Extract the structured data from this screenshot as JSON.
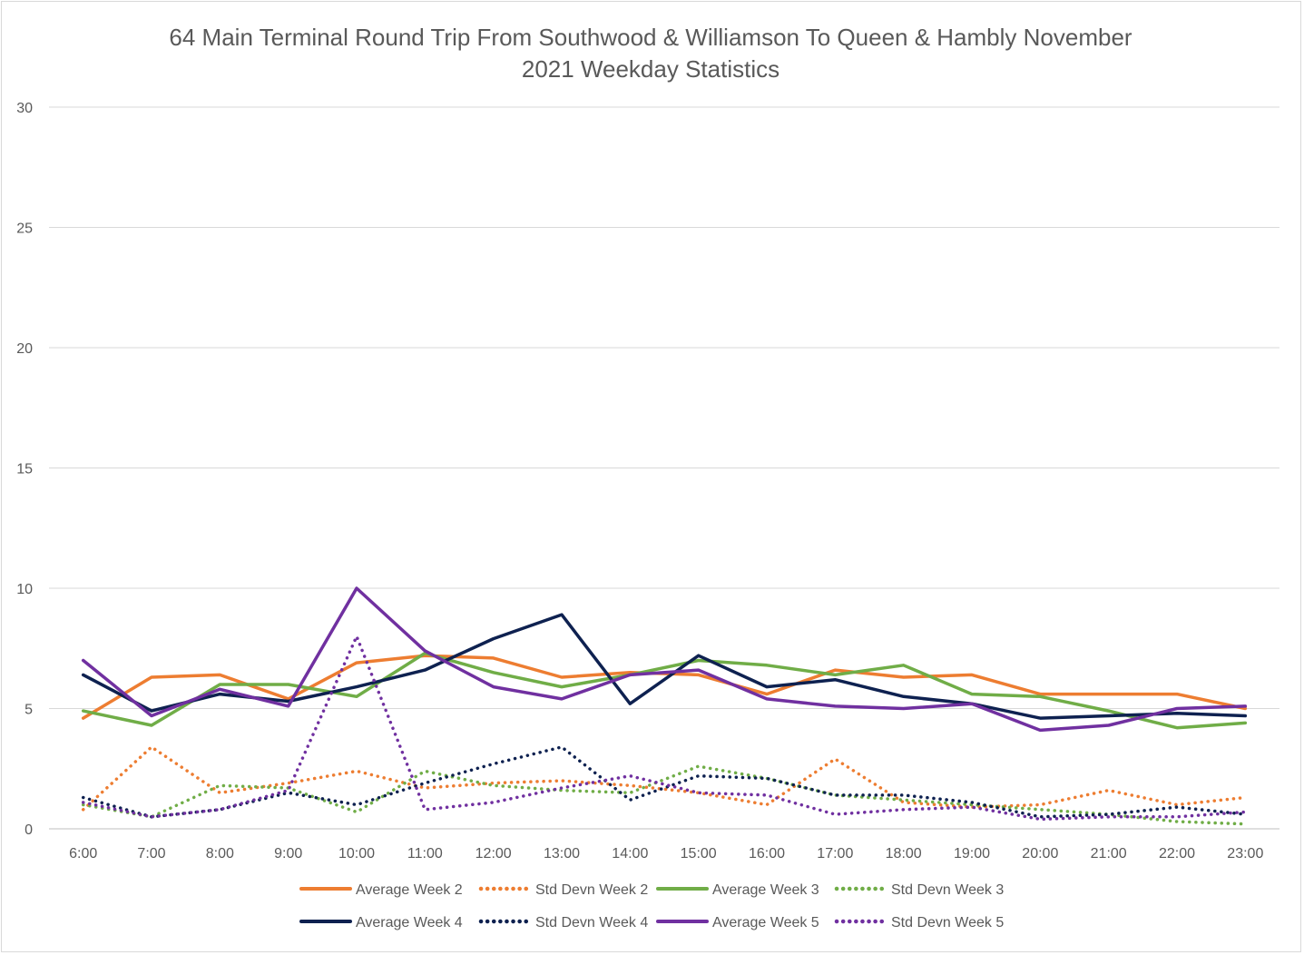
{
  "chart_data": {
    "type": "line",
    "title": "64 Main Terminal Round Trip From Southwood & Williamson To Queen & Hambly November 2021 Weekday Statistics",
    "title_lines": [
      "64 Main Terminal Round Trip From Southwood & Williamson To Queen & Hambly November",
      "2021 Weekday Statistics"
    ],
    "xlabel": "",
    "ylabel": "",
    "ylim": [
      0,
      30
    ],
    "yticks": [
      0,
      5,
      10,
      15,
      20,
      25,
      30
    ],
    "ytick_labels": [
      "0",
      "5",
      "10",
      "15",
      "20",
      "25",
      "30"
    ],
    "grid": true,
    "legend_position": "bottom",
    "categories": [
      "6:00",
      "7:00",
      "8:00",
      "9:00",
      "10:00",
      "11:00",
      "12:00",
      "13:00",
      "14:00",
      "15:00",
      "16:00",
      "17:00",
      "18:00",
      "19:00",
      "20:00",
      "21:00",
      "22:00",
      "23:00"
    ],
    "series": [
      {
        "name": "Average Week 2",
        "color": "#ED7D31",
        "dash": "solid",
        "values": [
          4.6,
          6.3,
          6.4,
          5.4,
          6.9,
          7.2,
          7.1,
          6.3,
          6.5,
          6.4,
          5.6,
          6.6,
          6.3,
          6.4,
          5.6,
          5.6,
          5.6,
          5.0
        ]
      },
      {
        "name": "Std Devn Week 2",
        "color": "#ED7D31",
        "dash": "dotted",
        "values": [
          0.8,
          3.4,
          1.5,
          1.9,
          2.4,
          1.7,
          1.9,
          2.0,
          1.8,
          1.5,
          1.0,
          2.9,
          1.1,
          0.9,
          1.0,
          1.6,
          1.0,
          1.3
        ]
      },
      {
        "name": "Average Week 3",
        "color": "#70AD47",
        "dash": "solid",
        "values": [
          4.9,
          4.3,
          6.0,
          6.0,
          5.5,
          7.3,
          6.5,
          5.9,
          6.4,
          7.0,
          6.8,
          6.4,
          6.8,
          5.6,
          5.5,
          4.9,
          4.2,
          4.4
        ]
      },
      {
        "name": "Std Devn Week 3",
        "color": "#70AD47",
        "dash": "dotted",
        "values": [
          1.0,
          0.5,
          1.8,
          1.7,
          0.7,
          2.4,
          1.8,
          1.6,
          1.5,
          2.6,
          2.1,
          1.4,
          1.2,
          1.0,
          0.8,
          0.6,
          0.3,
          0.2
        ]
      },
      {
        "name": "Average Week 4",
        "color": "#0E2150",
        "dash": "solid",
        "values": [
          6.4,
          4.9,
          5.6,
          5.3,
          5.9,
          6.6,
          7.9,
          8.9,
          5.2,
          7.2,
          5.9,
          6.2,
          5.5,
          5.2,
          4.6,
          4.7,
          4.8,
          4.7
        ]
      },
      {
        "name": "Std Devn Week 4",
        "color": "#0E2150",
        "dash": "dotted",
        "values": [
          1.3,
          0.5,
          0.8,
          1.5,
          1.0,
          1.9,
          2.7,
          3.4,
          1.2,
          2.2,
          2.1,
          1.4,
          1.4,
          1.1,
          0.5,
          0.6,
          0.9,
          0.6
        ]
      },
      {
        "name": "Average Week 5",
        "color": "#7030A0",
        "dash": "solid",
        "values": [
          7.0,
          4.7,
          5.8,
          5.1,
          10.0,
          7.4,
          5.9,
          5.4,
          6.4,
          6.6,
          5.4,
          5.1,
          5.0,
          5.2,
          4.1,
          4.3,
          5.0,
          5.1
        ]
      },
      {
        "name": "Std Devn Week 5",
        "color": "#7030A0",
        "dash": "dotted",
        "values": [
          1.1,
          0.5,
          0.8,
          1.6,
          8.0,
          0.8,
          1.1,
          1.7,
          2.2,
          1.5,
          1.4,
          0.6,
          0.8,
          0.9,
          0.4,
          0.5,
          0.5,
          0.7
        ]
      }
    ]
  }
}
